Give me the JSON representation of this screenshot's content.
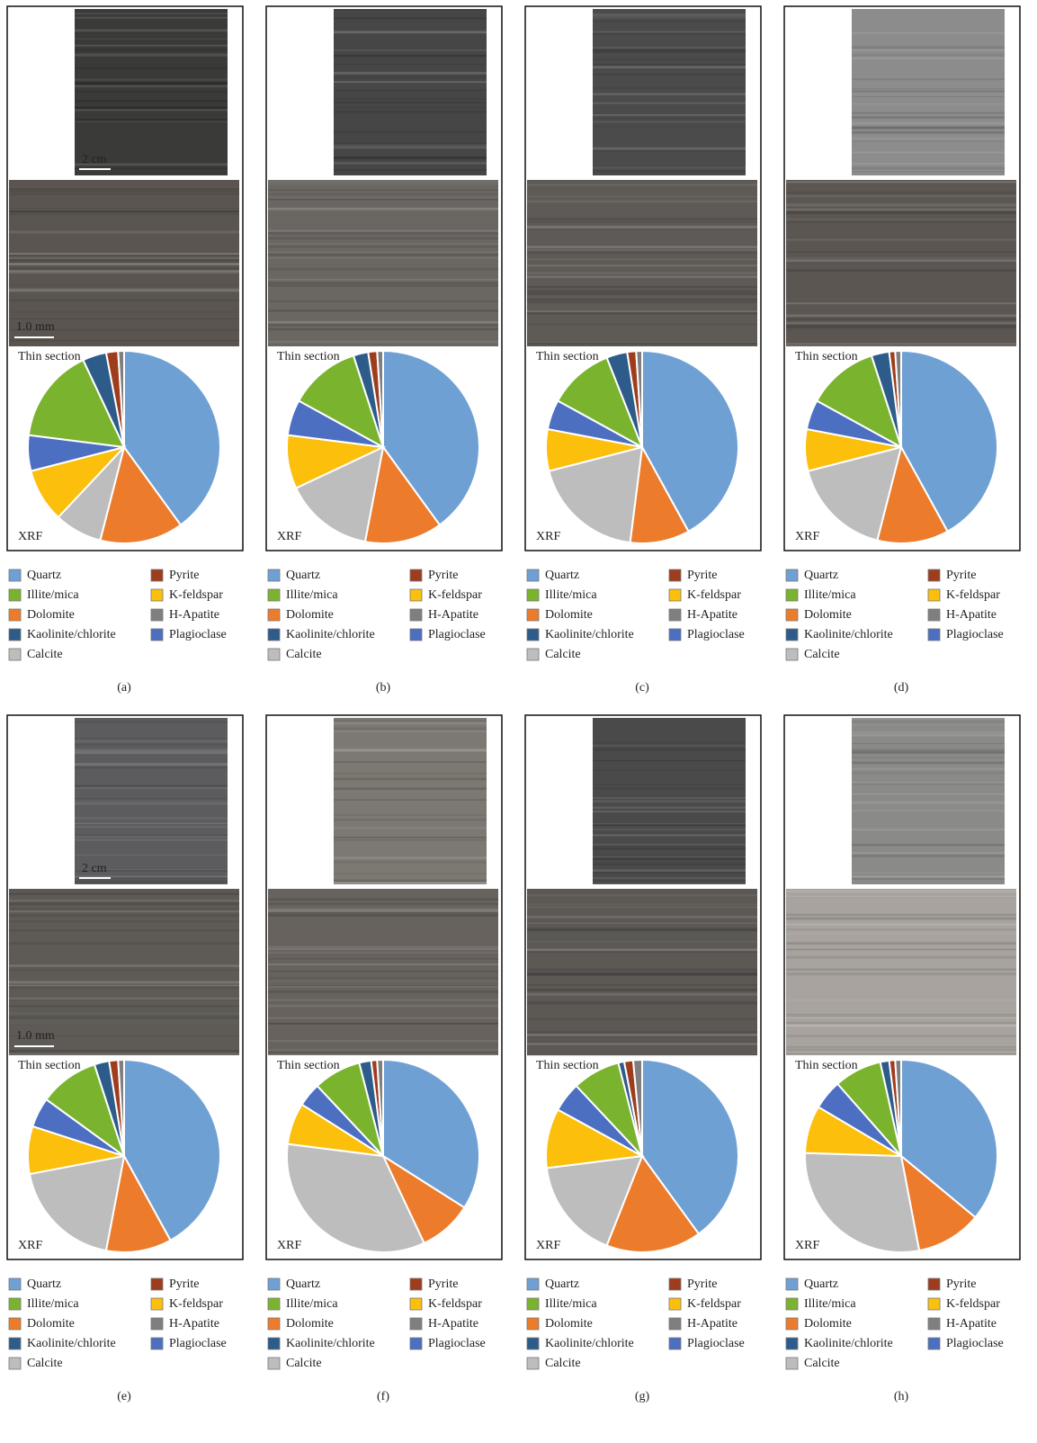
{
  "chart_data": [
    {
      "type": "pie",
      "label": "(a)",
      "thin_section_label": "Thin section",
      "xrf_label": "XRF",
      "core_scale": "2 cm",
      "thin_section_scale": "1.0 mm",
      "categories": [
        "Quartz",
        "Dolomite",
        "Calcite",
        "K-feldspar",
        "Plagioclase",
        "Illite/mica",
        "Kaolinite/chlorite",
        "Pyrite",
        "H-Apatite"
      ],
      "values": [
        40,
        14,
        8,
        9,
        6,
        16,
        4,
        2,
        1
      ],
      "colors": [
        "#6fa0d4",
        "#ec7c2c",
        "#bdbdbd",
        "#fbbf0c",
        "#4c6fc2",
        "#7ab32e",
        "#2e5c8a",
        "#9e3d1e",
        "#7f7f7f"
      ]
    },
    {
      "type": "pie",
      "label": "(b)",
      "thin_section_label": "Thin section",
      "xrf_label": "XRF",
      "categories": [
        "Quartz",
        "Dolomite",
        "Calcite",
        "K-feldspar",
        "Plagioclase",
        "Illite/mica",
        "Kaolinite/chlorite",
        "Pyrite",
        "H-Apatite"
      ],
      "values": [
        40,
        13,
        15,
        9,
        6,
        12,
        2.5,
        1.5,
        1
      ],
      "colors": [
        "#6fa0d4",
        "#ec7c2c",
        "#bdbdbd",
        "#fbbf0c",
        "#4c6fc2",
        "#7ab32e",
        "#2e5c8a",
        "#9e3d1e",
        "#7f7f7f"
      ]
    },
    {
      "type": "pie",
      "label": "(c)",
      "thin_section_label": "Thin section",
      "xrf_label": "XRF",
      "categories": [
        "Quartz",
        "Dolomite",
        "Calcite",
        "K-feldspar",
        "Plagioclase",
        "Illite/mica",
        "Kaolinite/chlorite",
        "Pyrite",
        "H-Apatite"
      ],
      "values": [
        42,
        10,
        19,
        7,
        5,
        11,
        3.5,
        1.5,
        1
      ],
      "colors": [
        "#6fa0d4",
        "#ec7c2c",
        "#bdbdbd",
        "#fbbf0c",
        "#4c6fc2",
        "#7ab32e",
        "#2e5c8a",
        "#9e3d1e",
        "#7f7f7f"
      ]
    },
    {
      "type": "pie",
      "label": "(d)",
      "thin_section_label": "Thin section",
      "xrf_label": "XRF",
      "categories": [
        "Quartz",
        "Dolomite",
        "Calcite",
        "K-feldspar",
        "Plagioclase",
        "Illite/mica",
        "Kaolinite/chlorite",
        "Pyrite",
        "H-Apatite"
      ],
      "values": [
        42,
        12,
        17,
        7,
        5,
        12,
        3,
        1,
        1
      ],
      "colors": [
        "#6fa0d4",
        "#ec7c2c",
        "#bdbdbd",
        "#fbbf0c",
        "#4c6fc2",
        "#7ab32e",
        "#2e5c8a",
        "#9e3d1e",
        "#7f7f7f"
      ]
    },
    {
      "type": "pie",
      "label": "(e)",
      "thin_section_label": "Thin section",
      "xrf_label": "XRF",
      "core_scale": "2 cm",
      "thin_section_scale": "1.0 mm",
      "categories": [
        "Quartz",
        "Dolomite",
        "Calcite",
        "K-feldspar",
        "Plagioclase",
        "Illite/mica",
        "Kaolinite/chlorite",
        "Pyrite",
        "H-Apatite"
      ],
      "values": [
        42,
        11,
        19,
        8,
        5,
        10,
        2.5,
        1.5,
        1
      ],
      "colors": [
        "#6fa0d4",
        "#ec7c2c",
        "#bdbdbd",
        "#fbbf0c",
        "#4c6fc2",
        "#7ab32e",
        "#2e5c8a",
        "#9e3d1e",
        "#7f7f7f"
      ]
    },
    {
      "type": "pie",
      "label": "(f)",
      "thin_section_label": "Thin section",
      "xrf_label": "XRF",
      "categories": [
        "Quartz",
        "Dolomite",
        "Calcite",
        "K-feldspar",
        "Plagioclase",
        "Illite/mica",
        "Kaolinite/chlorite",
        "Pyrite",
        "H-Apatite"
      ],
      "values": [
        34,
        9,
        34,
        7,
        4,
        8,
        2,
        1,
        1
      ],
      "colors": [
        "#6fa0d4",
        "#ec7c2c",
        "#bdbdbd",
        "#fbbf0c",
        "#4c6fc2",
        "#7ab32e",
        "#2e5c8a",
        "#9e3d1e",
        "#7f7f7f"
      ]
    },
    {
      "type": "pie",
      "label": "(g)",
      "thin_section_label": "Thin section",
      "xrf_label": "XRF",
      "categories": [
        "Quartz",
        "Dolomite",
        "Calcite",
        "K-feldspar",
        "Plagioclase",
        "Illite/mica",
        "Kaolinite/chlorite",
        "Pyrite",
        "H-Apatite"
      ],
      "values": [
        40,
        16,
        17,
        10,
        5,
        8,
        1,
        1.5,
        1.5
      ],
      "colors": [
        "#6fa0d4",
        "#ec7c2c",
        "#bdbdbd",
        "#fbbf0c",
        "#4c6fc2",
        "#7ab32e",
        "#2e5c8a",
        "#9e3d1e",
        "#7f7f7f"
      ]
    },
    {
      "type": "pie",
      "label": "(h)",
      "thin_section_label": "Thin section",
      "xrf_label": "XRF",
      "categories": [
        "Quartz",
        "Dolomite",
        "Calcite",
        "K-feldspar",
        "Plagioclase",
        "Illite/mica",
        "Kaolinite/chlorite",
        "Pyrite",
        "H-Apatite"
      ],
      "values": [
        36,
        11,
        28.5,
        8,
        5,
        8,
        1.5,
        1,
        1
      ],
      "colors": [
        "#6fa0d4",
        "#ec7c2c",
        "#bdbdbd",
        "#fbbf0c",
        "#4c6fc2",
        "#7ab32e",
        "#2e5c8a",
        "#9e3d1e",
        "#7f7f7f"
      ]
    }
  ]
}
